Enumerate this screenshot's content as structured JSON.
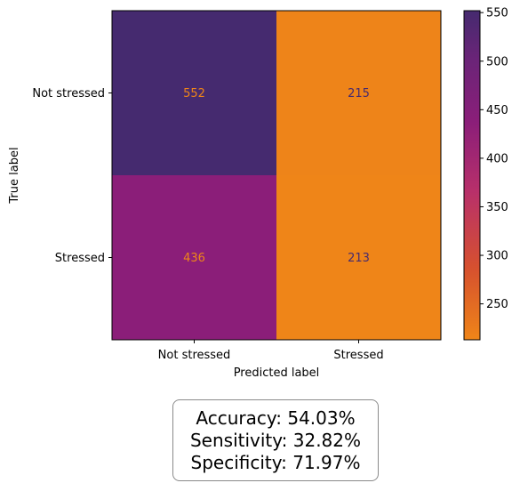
{
  "chart_data": {
    "type": "heatmap",
    "title": "",
    "xlabel": "Predicted label",
    "ylabel": "True label",
    "x_categories": [
      "Not stressed",
      "Stressed"
    ],
    "y_categories": [
      "Not stressed",
      "Stressed"
    ],
    "values": [
      [
        552,
        215
      ],
      [
        436,
        213
      ]
    ],
    "colormap": "inferno (truncated, reversed)",
    "colorbar": {
      "range": [
        213,
        552
      ],
      "ticks": [
        250,
        300,
        350,
        400,
        450,
        500,
        550
      ],
      "tick_labels": [
        "250",
        "300",
        "350",
        "400",
        "450",
        "500",
        "550"
      ]
    },
    "colors": {
      "high": "#452a6f",
      "mid": "#8b1e79",
      "low": "#ef8518",
      "text_on_dark": "#ef8518",
      "text_on_light": "#452a6f"
    }
  },
  "metrics": {
    "accuracy": "Accuracy: 54.03%",
    "sensitivity": "Sensitivity: 32.82%",
    "specificity": "Specificity: 71.97%"
  }
}
